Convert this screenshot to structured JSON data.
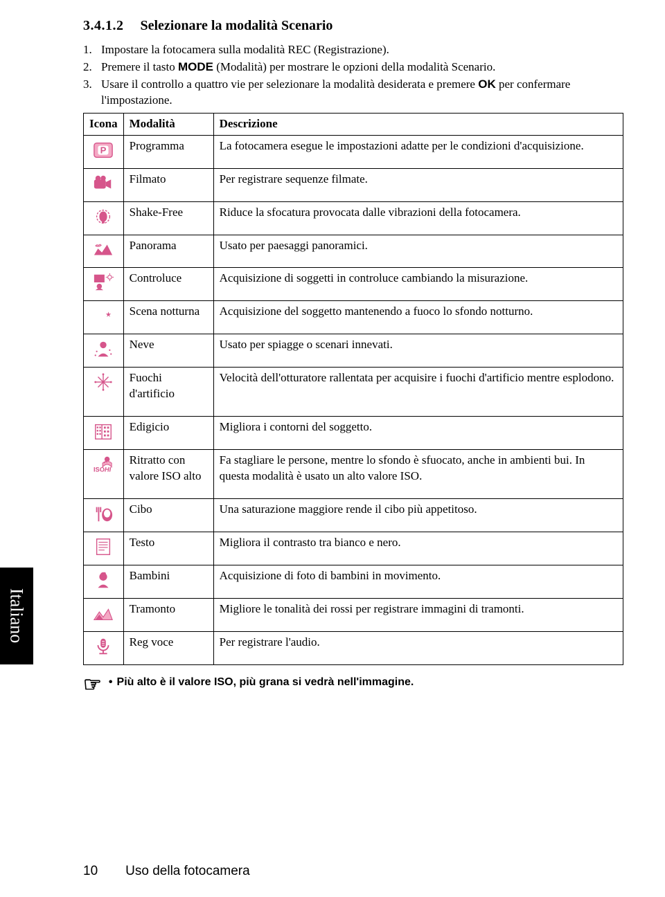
{
  "colors": {
    "accent": "#d6558b",
    "accent_light": "#f4a8c4",
    "border": "#000000",
    "bg": "#ffffff",
    "text": "#000000"
  },
  "heading": {
    "number": "3.4.1.2",
    "title": "Selezionare la modalità Scenario"
  },
  "steps": [
    {
      "n": "1.",
      "text_before": "Impostare la fotocamera sulla modalità REC (Registrazione).",
      "bold": "",
      "text_after": ""
    },
    {
      "n": "2.",
      "text_before": "Premere il tasto ",
      "bold": "MODE",
      "text_after": " (Modalità) per mostrare le opzioni della modalità Scenario."
    },
    {
      "n": "3.",
      "text_before": "Usare il controllo a quattro vie per selezionare la modalità desiderata e premere ",
      "bold": "OK",
      "text_after": " per confermare l'impostazione."
    }
  ],
  "table": {
    "headers": [
      "Icona",
      "Modalità",
      "Descrizione"
    ],
    "rows": [
      {
        "icon": "program",
        "mode": "Programma",
        "desc": "La fotocamera esegue le impostazioni adatte per le condizioni d'acquisizione."
      },
      {
        "icon": "movie",
        "mode": "Filmato",
        "desc": "Per registrare sequenze filmate."
      },
      {
        "icon": "shake",
        "mode": "Shake-Free",
        "desc": "Riduce la sfocatura provocata dalle vibrazioni della fotocamera."
      },
      {
        "icon": "panorama",
        "mode": "Panorama",
        "desc": "Usato per paesaggi panoramici."
      },
      {
        "icon": "backlight",
        "mode": "Controluce",
        "desc": "Acquisizione di soggetti in controluce cambiando la misurazione."
      },
      {
        "icon": "night",
        "mode": "Scena notturna",
        "desc": "Acquisizione del soggetto mantenendo a fuoco lo sfondo notturno."
      },
      {
        "icon": "snow",
        "mode": "Neve",
        "desc": "Usato per spiagge o scenari innevati."
      },
      {
        "icon": "firework",
        "mode": "Fuochi d'artificio",
        "desc": "Velocità dell'otturatore rallentata per acquisire i fuochi d'artificio mentre esplodono."
      },
      {
        "icon": "building",
        "mode": "Edigicio",
        "desc": "Migliora i contorni del soggetto."
      },
      {
        "icon": "isohi",
        "mode": "Ritratto con valore ISO alto",
        "desc": "Fa stagliare le persone, mentre lo sfondo è sfuocato, anche in ambienti bui. In questa modalità è usato un alto valore ISO."
      },
      {
        "icon": "food",
        "mode": "Cibo",
        "desc": "Una saturazione maggiore rende il cibo più appetitoso."
      },
      {
        "icon": "text",
        "mode": "Testo",
        "desc": "Migliora il contrasto tra bianco e nero."
      },
      {
        "icon": "kids",
        "mode": "Bambini",
        "desc": "Acquisizione di foto di bambini in movimento."
      },
      {
        "icon": "sunset",
        "mode": "Tramonto",
        "desc": "Migliore le tonalità dei rossi per registrare immagini di tramonti."
      },
      {
        "icon": "voice",
        "mode": "Reg voce",
        "desc": "Per registrare l'audio."
      }
    ]
  },
  "footnote": "Più alto è il valore ISO, più grana si vedrà nell'immagine.",
  "side_tab": "Italiano",
  "footer": {
    "page": "10",
    "section": "Uso della fotocamera"
  }
}
